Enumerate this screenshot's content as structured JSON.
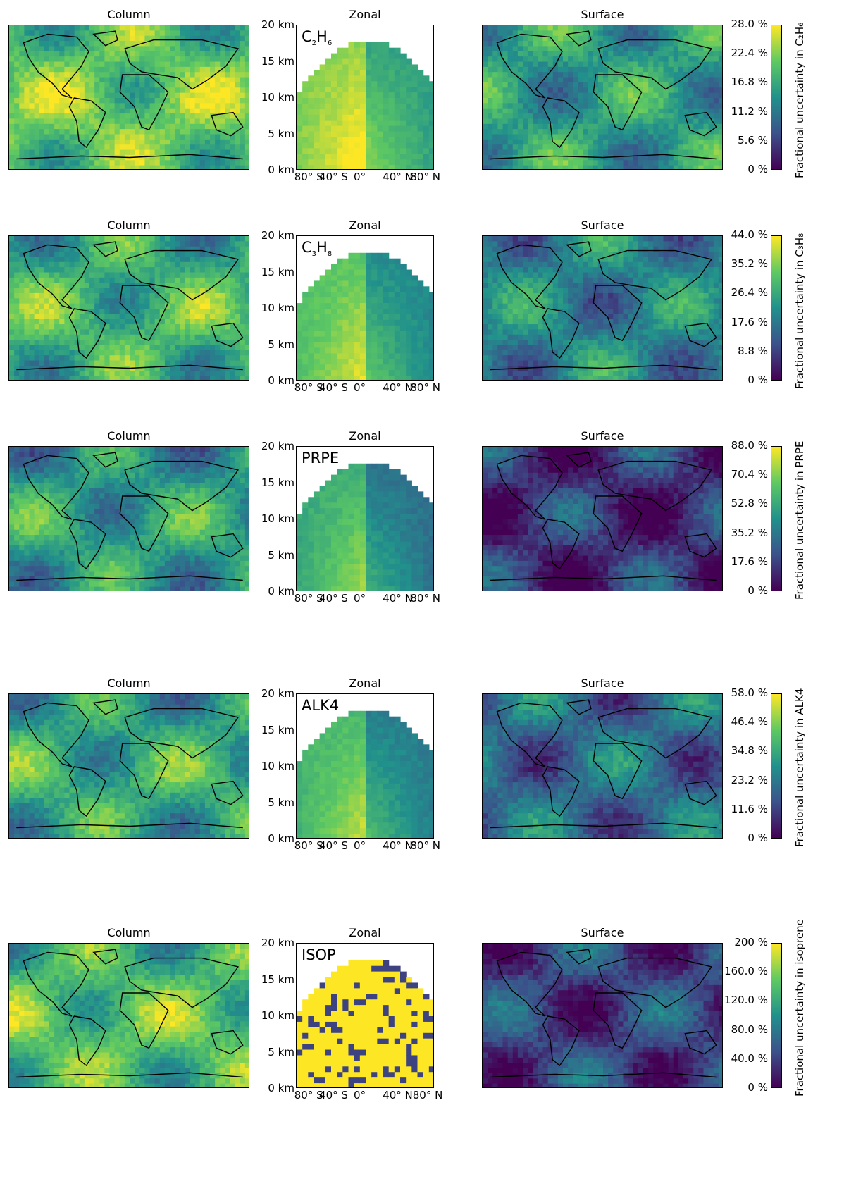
{
  "colors": {
    "viridis": [
      "#440154",
      "#3b528b",
      "#21918c",
      "#5ec962",
      "#fde725"
    ],
    "coast": "#000000"
  },
  "chart_data": [
    {
      "type": "heatmap",
      "species_label": "C₂H₆",
      "species_parts": [
        {
          "t": "C"
        },
        {
          "s": "2"
        },
        {
          "t": "H"
        },
        {
          "s": "6"
        }
      ],
      "titles": {
        "column": "Column",
        "zonal": "Zonal",
        "surface": "Surface"
      },
      "zonal_yticks": [
        "20 km",
        "15 km",
        "10 km",
        "5 km",
        "0 km"
      ],
      "zonal_xticks": [
        "80° S",
        "40° S",
        "0°",
        "40° N",
        "80° N"
      ],
      "colorbar": {
        "label": "Fractional uncertainty in C₂H₆",
        "ticks": [
          "28.0 %",
          "22.4 %",
          "16.8 %",
          "11.2 %",
          "5.6 %",
          "0 %"
        ],
        "range": [
          0,
          28.0
        ]
      },
      "column_mean_level": 0.65,
      "surface_mean_level": 0.55
    },
    {
      "type": "heatmap",
      "species_label": "C₃H₈",
      "species_parts": [
        {
          "t": "C"
        },
        {
          "s": "3"
        },
        {
          "t": "H"
        },
        {
          "s": "8"
        }
      ],
      "titles": {
        "column": "Column",
        "zonal": "Zonal",
        "surface": "Surface"
      },
      "zonal_yticks": [
        "20 km",
        "15 km",
        "10 km",
        "5 km",
        "0 km"
      ],
      "zonal_xticks": [
        "80° S",
        "40° S",
        "0°",
        "40° N",
        "80° N"
      ],
      "colorbar": {
        "label": "Fractional uncertainty in C₃H₈",
        "ticks": [
          "44.0 %",
          "35.2 %",
          "26.4 %",
          "17.6 %",
          "8.8 %",
          "0 %"
        ],
        "range": [
          0,
          44.0
        ]
      },
      "column_mean_level": 0.55,
      "surface_mean_level": 0.45
    },
    {
      "type": "heatmap",
      "species_label": "PRPE",
      "species_parts": [
        {
          "t": "PRPE"
        }
      ],
      "titles": {
        "column": "Column",
        "zonal": "Zonal",
        "surface": "Surface"
      },
      "zonal_yticks": [
        "20 km",
        "15 km",
        "10 km",
        "5 km",
        "0 km"
      ],
      "zonal_xticks": [
        "80° S",
        "40° S",
        "0°",
        "40° N",
        "80° N"
      ],
      "colorbar": {
        "label": "Fractional uncertainty in PRPE",
        "ticks": [
          "88.0 %",
          "70.4 %",
          "52.8 %",
          "35.2 %",
          "17.6 %",
          "0 %"
        ],
        "range": [
          0,
          88.0
        ]
      },
      "column_mean_level": 0.45,
      "surface_mean_level": 0.15
    },
    {
      "type": "heatmap",
      "species_label": "ALK4",
      "species_parts": [
        {
          "t": "ALK4"
        }
      ],
      "titles": {
        "column": "Column",
        "zonal": "Zonal",
        "surface": "Surface"
      },
      "zonal_yticks": [
        "20 km",
        "15 km",
        "10 km",
        "5 km",
        "0 km"
      ],
      "zonal_xticks": [
        "80° S",
        "40° S",
        "0°",
        "40° N",
        "80° N"
      ],
      "colorbar": {
        "label": "Fractional uncertainty in ALK4",
        "ticks": [
          "58.0 %",
          "46.4 %",
          "34.8 %",
          "23.2 %",
          "11.6 %",
          "0 %"
        ],
        "range": [
          0,
          58.0
        ]
      },
      "column_mean_level": 0.5,
      "surface_mean_level": 0.35
    },
    {
      "type": "heatmap",
      "species_label": "ISOP",
      "species_parts": [
        {
          "t": "ISOP"
        }
      ],
      "titles": {
        "column": "Column",
        "zonal": "Zonal",
        "surface": "Surface"
      },
      "zonal_yticks": [
        "20 km",
        "15 km",
        "10 km",
        "5 km",
        "0 km"
      ],
      "zonal_xticks": [
        "80° S",
        "40° S",
        "0°",
        "40° N80° N"
      ],
      "colorbar": {
        "label": "Fractional uncertainty in isoprene",
        "ticks": [
          "200 %",
          "160.0 %",
          "120.0 %",
          "80.0 %",
          "40.0 %",
          "0 %"
        ],
        "range": [
          0,
          200
        ]
      },
      "column_mean_level": 0.6,
      "surface_mean_level": 0.2
    }
  ]
}
